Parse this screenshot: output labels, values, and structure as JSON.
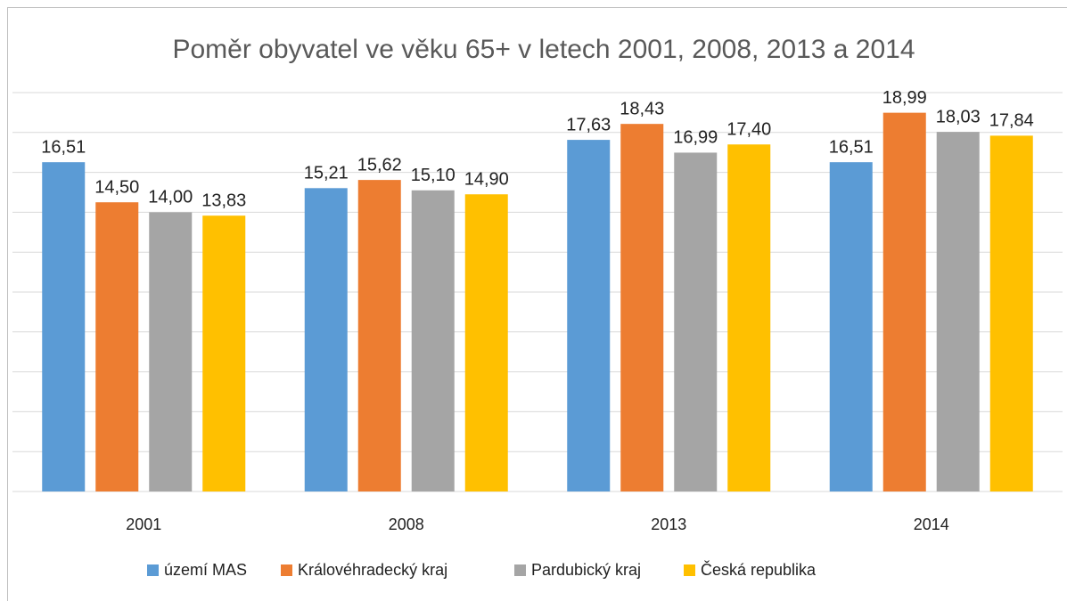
{
  "chart_data": {
    "type": "bar",
    "title": "Poměr obyvatel ve věku 65+  v letech 2001, 2008, 2013 a 2014",
    "categories": [
      "2001",
      "2008",
      "2013",
      "2014"
    ],
    "series": [
      {
        "name": "území MAS",
        "color": "#5b9bd5",
        "values": [
          16.51,
          15.21,
          17.63,
          16.51
        ],
        "value_labels": [
          "16,51",
          "15,21",
          "17,63",
          "16,51"
        ]
      },
      {
        "name": "Královéhradecký kraj",
        "color": "#ed7d31",
        "values": [
          14.5,
          15.62,
          18.43,
          18.99
        ],
        "value_labels": [
          "14,50",
          "15,62",
          "18,43",
          "18,99"
        ]
      },
      {
        "name": "Pardubický kraj",
        "color": "#a5a5a5",
        "values": [
          14.0,
          15.1,
          16.99,
          18.03
        ],
        "value_labels": [
          "14,00",
          "15,10",
          "16,99",
          "18,03"
        ]
      },
      {
        "name": "Česká republika",
        "color": "#ffc000",
        "values": [
          13.83,
          14.9,
          17.4,
          17.84
        ],
        "value_labels": [
          "13,83",
          "14,90",
          "17,40",
          "17,84"
        ]
      }
    ],
    "ylim": [
      0,
      20
    ],
    "yticks": [
      0,
      2,
      4,
      6,
      8,
      10,
      12,
      14,
      16,
      18,
      20
    ],
    "grid": true,
    "legend": "bottom"
  }
}
